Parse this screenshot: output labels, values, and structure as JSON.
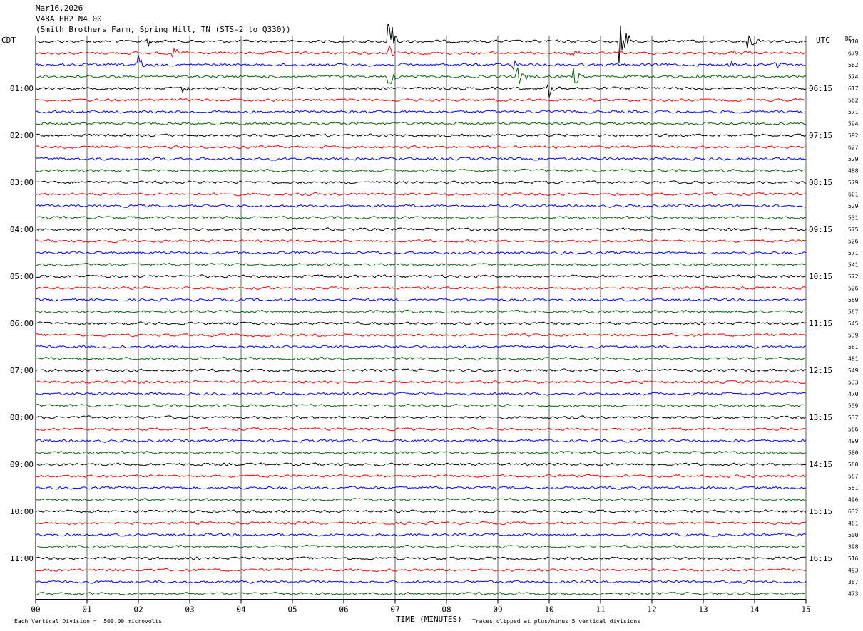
{
  "header": {
    "date": "Mar16,2026",
    "station": "V48A HH2 N4 00",
    "location": "(Smith Brothers Farm, Spring Hill, TN (STS-2 to Q330))"
  },
  "left_axis_label": "CDT",
  "right_axis_label": "UTC",
  "dc_label": "DC",
  "xlabel": "TIME (MINUTES)",
  "footer_left": "Each Vertical Division =  500.00 microvolts",
  "footer_right": "Traces clipped at plus/minus 5 vertical divisions",
  "colors": {
    "cycle": [
      "#000000",
      "#ff0000",
      "#0000ff",
      "#006400"
    ],
    "grid": "#000000"
  },
  "chart_data": {
    "type": "line",
    "xlim": [
      0,
      15
    ],
    "x_ticks": [
      "00",
      "01",
      "02",
      "03",
      "04",
      "05",
      "06",
      "07",
      "08",
      "09",
      "10",
      "11",
      "12",
      "13",
      "14",
      "15"
    ],
    "left_hour_labels": [
      "01:00",
      "02:00",
      "03:00",
      "04:00",
      "05:00",
      "06:00",
      "07:00",
      "08:00",
      "09:00",
      "10:00",
      "11:00"
    ],
    "right_hour_labels": [
      "06:15",
      "07:15",
      "08:15",
      "09:15",
      "10:15",
      "11:15",
      "12:15",
      "13:15",
      "14:15",
      "15:15",
      "16:15"
    ],
    "dc_offsets": [
      "510",
      "679",
      "582",
      "574",
      "617",
      "562",
      "571",
      "594",
      "592",
      "627",
      "529",
      "488",
      "579",
      "601",
      "529",
      "531",
      "575",
      "526",
      "571",
      "541",
      "572",
      "526",
      "569",
      "567",
      "545",
      "539",
      "561",
      "481",
      "549",
      "533",
      "470",
      "559",
      "537",
      "586",
      "499",
      "580",
      "560",
      "587",
      "551",
      "496",
      "632",
      "481",
      "500",
      "398",
      "516",
      "493",
      "367",
      "473"
    ],
    "events": [
      {
        "trace": 0,
        "minute": 2.2,
        "amp": 0.5
      },
      {
        "trace": 0,
        "minute": 6.9,
        "amp": 2.2
      },
      {
        "trace": 0,
        "minute": 11.4,
        "amp": 2.0
      },
      {
        "trace": 0,
        "minute": 13.9,
        "amp": 0.8
      },
      {
        "trace": 1,
        "minute": 2.7,
        "amp": 0.5
      },
      {
        "trace": 1,
        "minute": 6.9,
        "amp": 0.6
      },
      {
        "trace": 1,
        "minute": 10.4,
        "amp": 0.6
      },
      {
        "trace": 1,
        "minute": 13.6,
        "amp": 0.4
      },
      {
        "trace": 2,
        "minute": 2.0,
        "amp": 1.1
      },
      {
        "trace": 2,
        "minute": 9.3,
        "amp": 0.7
      },
      {
        "trace": 2,
        "minute": 13.5,
        "amp": 0.6
      },
      {
        "trace": 2,
        "minute": 14.4,
        "amp": 0.5
      },
      {
        "trace": 3,
        "minute": 6.9,
        "amp": 0.9
      },
      {
        "trace": 3,
        "minute": 9.4,
        "amp": 0.8
      },
      {
        "trace": 3,
        "minute": 10.5,
        "amp": 0.9
      },
      {
        "trace": 3,
        "minute": 12.9,
        "amp": 0.4
      },
      {
        "trace": 4,
        "minute": 2.9,
        "amp": 0.4
      },
      {
        "trace": 4,
        "minute": 10.0,
        "amp": 0.7
      }
    ]
  }
}
